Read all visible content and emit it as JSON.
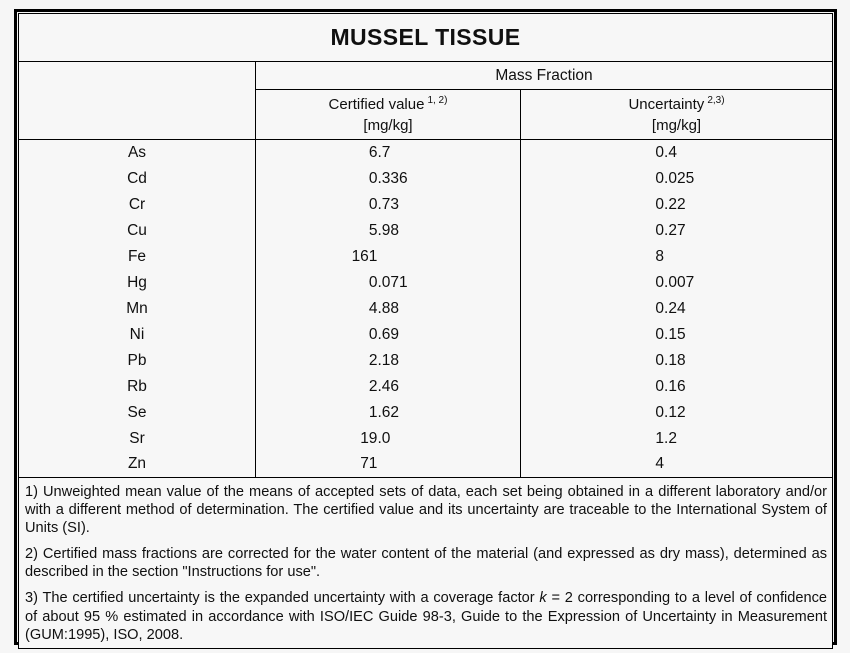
{
  "page": {
    "background": "#f6f6f6",
    "frame_border_color": "#000000",
    "text_color": "#101010"
  },
  "table": {
    "title": "MUSSEL TISSUE",
    "group_header": "Mass Fraction",
    "columns": [
      {
        "label": "Certified value",
        "superscript": "1, 2)",
        "unit": "[mg/kg]"
      },
      {
        "label": "Uncertainty",
        "superscript": "2,3)",
        "unit": "[mg/kg]"
      }
    ],
    "rows": [
      {
        "element": "As",
        "certified_value": "6.7",
        "uncertainty": "0.4"
      },
      {
        "element": "Cd",
        "certified_value": "0.336",
        "uncertainty": "0.025"
      },
      {
        "element": "Cr",
        "certified_value": "0.73",
        "uncertainty": "0.22"
      },
      {
        "element": "Cu",
        "certified_value": "5.98",
        "uncertainty": "0.27"
      },
      {
        "element": "Fe",
        "certified_value": "161",
        "uncertainty": "8"
      },
      {
        "element": "Hg",
        "certified_value": "0.071",
        "uncertainty": "0.007"
      },
      {
        "element": "Mn",
        "certified_value": "4.88",
        "uncertainty": "0.24"
      },
      {
        "element": "Ni",
        "certified_value": "0.69",
        "uncertainty": "0.15"
      },
      {
        "element": "Pb",
        "certified_value": "2.18",
        "uncertainty": "0.18"
      },
      {
        "element": "Rb",
        "certified_value": "2.46",
        "uncertainty": "0.16"
      },
      {
        "element": "Se",
        "certified_value": "1.62",
        "uncertainty": "0.12"
      },
      {
        "element": "Sr",
        "certified_value": "19.0",
        "uncertainty": "1.2"
      },
      {
        "element": "Zn",
        "certified_value": "71",
        "uncertainty": "4"
      }
    ]
  },
  "footnotes": [
    {
      "parts": [
        {
          "text": "1) Unweighted mean value of the means of accepted sets of data, each set being obtained in a different laboratory and/or with a different method of determination. The certified value and its uncertainty are traceable to the International System of Units (SI).",
          "italic": false
        }
      ]
    },
    {
      "parts": [
        {
          "text": "2) Certified mass fractions are corrected for the water content of the material (and expressed as dry mass), determined as described in the section \"Instructions for use\".",
          "italic": false
        }
      ]
    },
    {
      "parts": [
        {
          "text": "3) The certified uncertainty is the expanded uncertainty with a coverage factor ",
          "italic": false
        },
        {
          "text": "k",
          "italic": true
        },
        {
          "text": " = 2 corresponding to a level of confidence of about 95 % estimated in accordance with ISO/IEC Guide 98-3, Guide to the Expression of Uncertainty in Measurement (GUM:1995), ISO, 2008.",
          "italic": false
        }
      ]
    }
  ]
}
